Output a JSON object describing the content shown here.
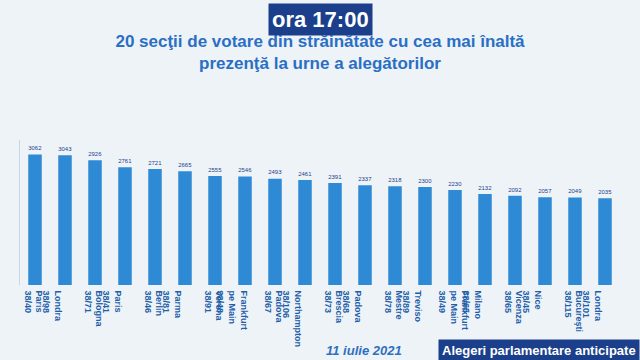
{
  "chart_data": {
    "type": "bar",
    "title": "20 secţii de votare din străinătate cu cea mai înaltă\nprezenţă la urne a alegătorilor",
    "annotations": [
      "ora 17:00",
      "11 iulie 2021",
      "Alegeri parlamentare anticipate"
    ],
    "categories": [
      "Paris\n38/40",
      "Londra\n38/98",
      "Bologna\n38/71",
      "Paris\n38/41",
      "Berlin\n38/46",
      "Parma\n38/81",
      "Verona\n38/91",
      "Frankfurt\npe Main\n38/48",
      "Padova\n38/67",
      "Northampton\n38/106",
      "Brescia\n38/73",
      "Padova\n38/68",
      "Mestre\n38/78",
      "Treviso\n38/89",
      "Frankfurt\npe Main\n38/49",
      "Milano\n38/65",
      "Vicenza\n38/65",
      "Nice\n38/45",
      "Bucureşti\n38/115",
      "Londra\n38/101"
    ],
    "values": [
      3062,
      3043,
      2926,
      2761,
      2721,
      2665,
      2555,
      2546,
      2493,
      2461,
      2391,
      2337,
      2318,
      2300,
      2230,
      2132,
      2092,
      2057,
      2049,
      2035
    ],
    "color": "#2f8ad6",
    "ylim": [
      0,
      3400
    ],
    "grid": false,
    "data_labels": true,
    "tick_labels": "x"
  }
}
